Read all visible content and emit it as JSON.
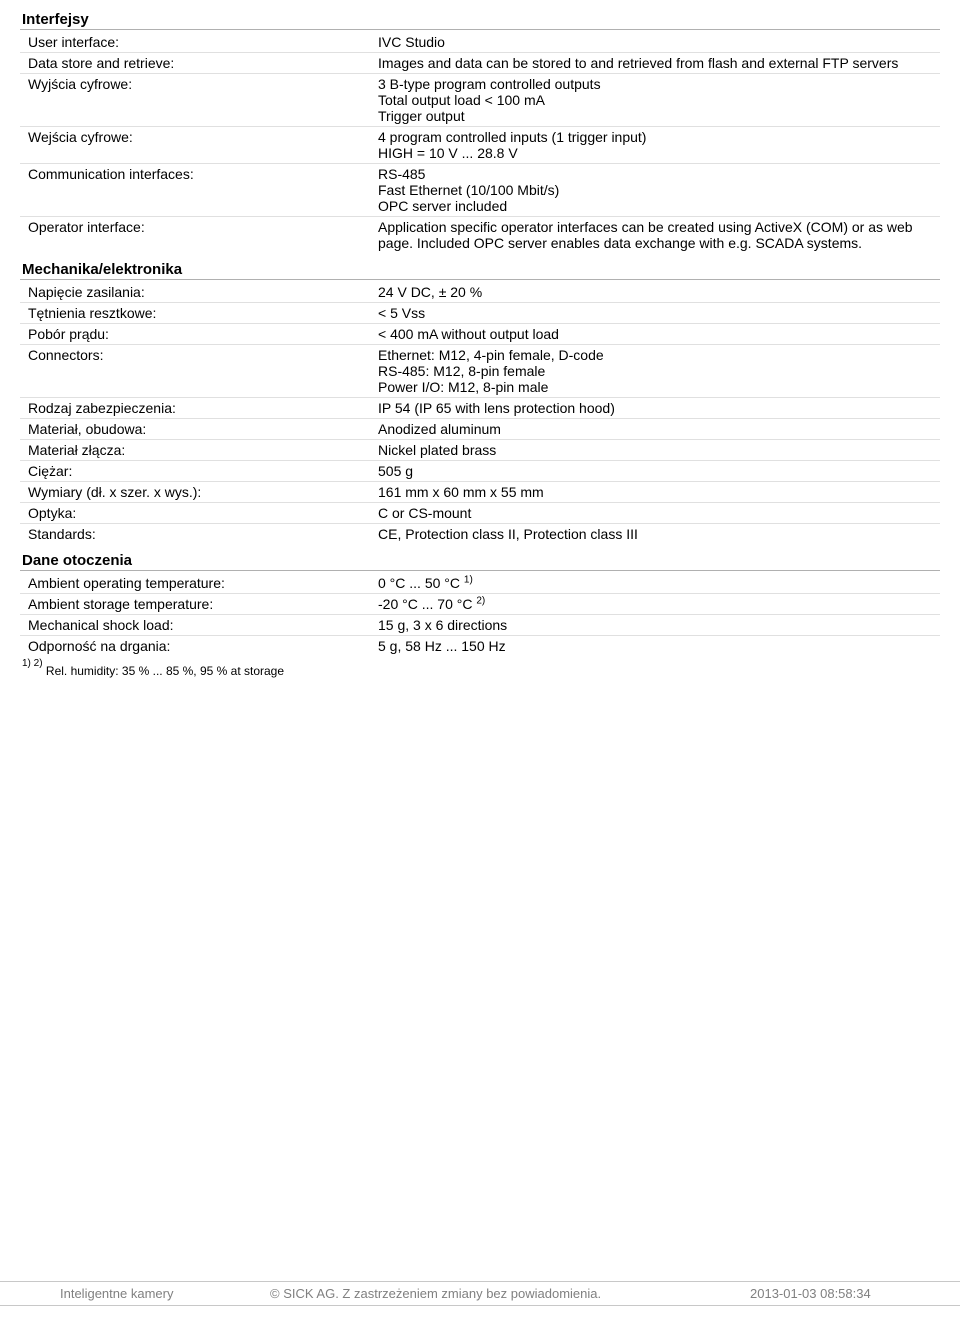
{
  "colors": {
    "text": "#000000",
    "rule": "#b0b0b0",
    "row_rule": "#e0e0e0",
    "footer_text": "#808080",
    "footer_rule": "#c8c8c8",
    "background": "#ffffff"
  },
  "fonts": {
    "family": "Arial",
    "section_title_size_pt": 11,
    "row_size_pt": 10,
    "footnote_size_pt": 9,
    "footer_size_pt": 10
  },
  "sections": {
    "interfejsy": {
      "title": "Interfejsy",
      "rows": [
        {
          "label": "User interface:",
          "value": "IVC Studio"
        },
        {
          "label": "Data store and retrieve:",
          "value": "Images and data can be stored to and retrieved from flash and external FTP servers"
        },
        {
          "label": "Wyjścia cyfrowe:",
          "value": "3 B-type program controlled outputs\nTotal output load < 100 mA\nTrigger output"
        },
        {
          "label": "Wejścia cyfrowe:",
          "value": "4 program controlled inputs (1 trigger input)\nHIGH = 10 V ... 28.8 V"
        },
        {
          "label": "Communication interfaces:",
          "value": "RS-485\nFast Ethernet (10/100 Mbit/s)\nOPC server included"
        },
        {
          "label": "Operator interface:",
          "value": "Application specific operator interfaces can be created using ActiveX (COM) or as web page. Included OPC server enables data exchange with e.g. SCADA systems."
        }
      ]
    },
    "mechanika": {
      "title": "Mechanika/elektronika",
      "rows": [
        {
          "label": "Napięcie zasilania:",
          "value": "24 V DC, ± 20 %"
        },
        {
          "label": "Tętnienia resztkowe:",
          "value": "< 5 Vss"
        },
        {
          "label": "Pobór prądu:",
          "value": "< 400 mA without output load"
        },
        {
          "label": "Connectors:",
          "value": "Ethernet: M12, 4-pin female, D-code\nRS-485: M12, 8-pin female\nPower I/O: M12, 8-pin male"
        },
        {
          "label": "Rodzaj zabezpieczenia:",
          "value": "IP 54 (IP 65 with lens protection hood)"
        },
        {
          "label": "Materiał, obudowa:",
          "value": "Anodized aluminum"
        },
        {
          "label": "Materiał złącza:",
          "value": "Nickel plated brass"
        },
        {
          "label": "Ciężar:",
          "value": "505 g"
        },
        {
          "label": "Wymiary (dł. x szer. x wys.):",
          "value": "161 mm x 60 mm x 55 mm"
        },
        {
          "label": "Optyka:",
          "value": "C or CS-mount"
        },
        {
          "label": "Standards:",
          "value": "CE, Protection class II, Protection class III"
        }
      ]
    },
    "dane": {
      "title": "Dane otoczenia",
      "rows": [
        {
          "label": "Ambient operating temperature:",
          "value": "0 °C ... 50 °C",
          "sup": "1)"
        },
        {
          "label": "Ambient storage temperature:",
          "value": "-20 °C ... 70 °C",
          "sup": "2)"
        },
        {
          "label": "Mechanical shock load:",
          "value": "15 g, 3 x 6 directions"
        },
        {
          "label": "Odporność na drgania:",
          "value": "5 g, 58 Hz ... 150 Hz"
        }
      ],
      "footnote_sup": "1) 2)",
      "footnote_text": "Rel. humidity: 35 % ... 85 %, 95 % at storage"
    }
  },
  "footer": {
    "left": "Inteligentne kamery",
    "center": "© SICK AG. Z zastrzeżeniem zmiany bez powiadomienia.",
    "right": "2013-01-03 08:58:34"
  }
}
